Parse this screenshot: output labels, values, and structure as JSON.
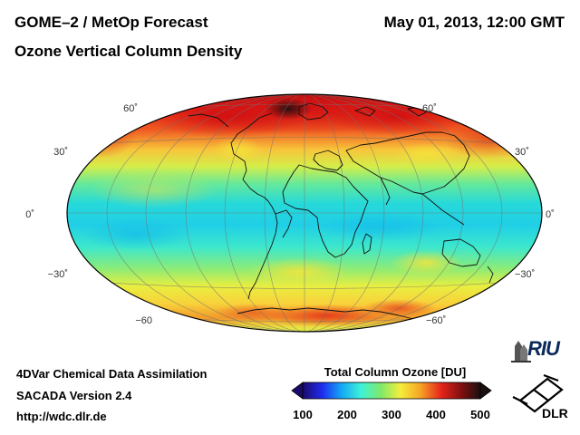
{
  "header": {
    "title": "GOME–2 / MetOp Forecast",
    "subtitle": "Ozone Vertical Column Density",
    "datetime": "May 01, 2013, 12:00 GMT"
  },
  "map": {
    "projection": "Hammer-Aitoff (global)",
    "latitude_labels_left": [
      "60˚",
      "30˚",
      "0˚",
      "−30˚",
      "−60"
    ],
    "latitude_labels_right": [
      "60˚",
      "30˚",
      "0˚",
      "−30˚",
      "−60˚"
    ]
  },
  "footer": {
    "line1": "4DVar Chemical Data Assimilation",
    "line2": "SACADA Version 2.4",
    "url": "http://wdc.dlr.de"
  },
  "colorbar": {
    "title": "Total Column Ozone [DU]",
    "ticks": [
      "100",
      "200",
      "300",
      "400",
      "500"
    ],
    "stops": [
      "#1a0a6b",
      "#1e2cf0",
      "#14a9f5",
      "#3ff2d8",
      "#7fe86a",
      "#f4ee3c",
      "#f7a626",
      "#e5241a",
      "#7a0f0f",
      "#1a1010"
    ]
  },
  "logos": {
    "riu": "RIU",
    "dlr": "DLR"
  }
}
